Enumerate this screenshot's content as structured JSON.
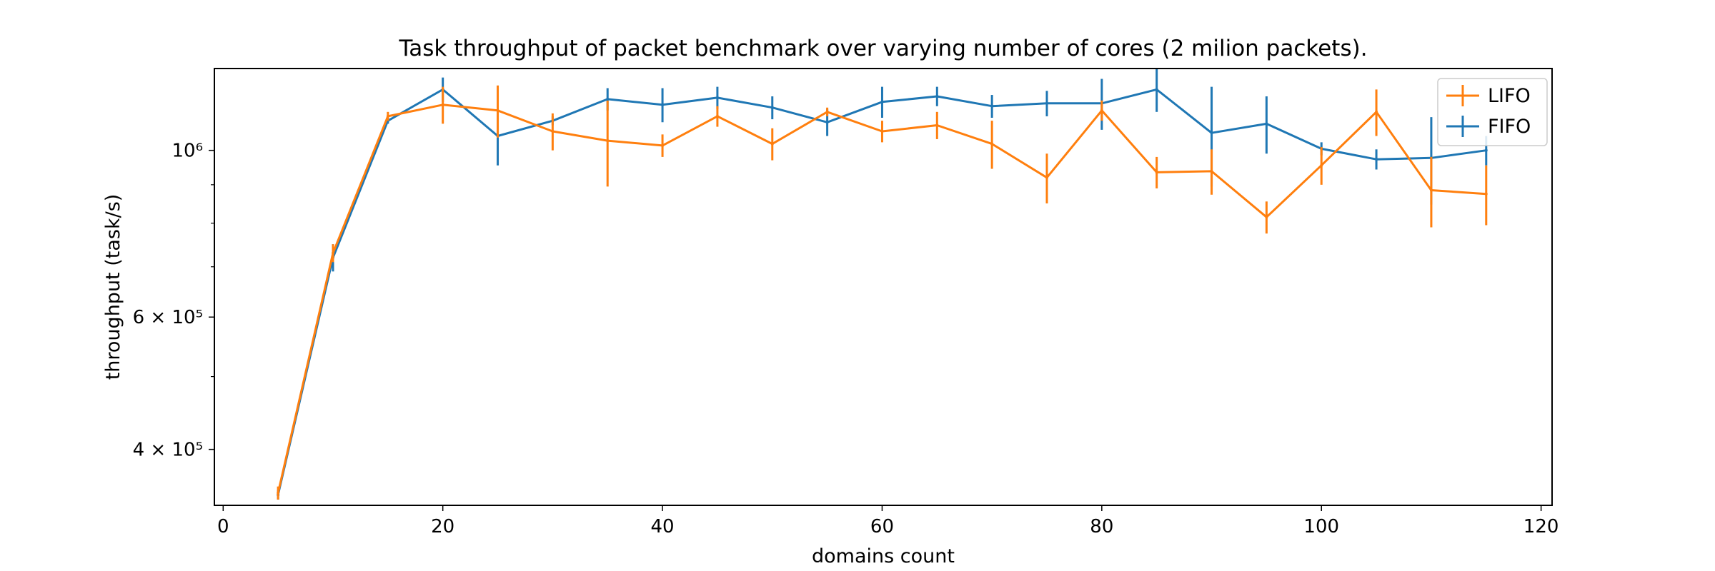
{
  "chart_data": {
    "type": "line",
    "title": "Task throughput of packet benchmark over varying number of cores (2 milion packets).",
    "xlabel": "domains count",
    "ylabel": "throughput (task/s)",
    "xlim": [
      -0.8,
      121
    ],
    "ylim": [
      337000,
      1285000
    ],
    "yscale": "log",
    "xticks": [
      0,
      20,
      40,
      60,
      80,
      100,
      120
    ],
    "yticks": [
      {
        "value": 400000,
        "label": "4 × 10⁵"
      },
      {
        "value": 600000,
        "label": "6 × 10⁵"
      },
      {
        "value": 1000000,
        "label": "10⁶"
      }
    ],
    "yminor_ticks": [
      500000,
      700000,
      800000,
      900000
    ],
    "legend": "top-right",
    "grid": false,
    "x": [
      5,
      10,
      15,
      20,
      25,
      30,
      35,
      40,
      45,
      50,
      55,
      60,
      65,
      70,
      75,
      80,
      85,
      90,
      95,
      100,
      105,
      110,
      115
    ],
    "series": [
      {
        "name": "LIFO",
        "color": "#ff7f0e",
        "values": [
          350000,
          730000,
          1110000,
          1150000,
          1130000,
          1060000,
          1030000,
          1015000,
          1110000,
          1020000,
          1125000,
          1060000,
          1080000,
          1020000,
          920000,
          1130000,
          935000,
          938000,
          815000,
          955000,
          1125000,
          885000,
          875000
        ],
        "errors": [
          7000,
          20000,
          15000,
          65000,
          90000,
          60000,
          135000,
          35000,
          35000,
          50000,
          15000,
          35000,
          45000,
          75000,
          70000,
          35000,
          45000,
          65000,
          40000,
          55000,
          80000,
          95000,
          80000
        ]
      },
      {
        "name": "FIFO",
        "color": "#1f77b4",
        "values": [
          348000,
          720000,
          1095000,
          1205000,
          1045000,
          1095000,
          1170000,
          1150000,
          1175000,
          1140000,
          1090000,
          1160000,
          1180000,
          1145000,
          1155000,
          1155000,
          1205000,
          1055000,
          1085000,
          1005000,
          973000,
          977000,
          1000000
        ],
        "errors": [
          5000,
          30000,
          10000,
          45000,
          90000,
          15000,
          40000,
          60000,
          40000,
          40000,
          45000,
          55000,
          35000,
          40000,
          45000,
          90000,
          80000,
          160000,
          95000,
          20000,
          30000,
          130000,
          45000
        ]
      }
    ]
  }
}
